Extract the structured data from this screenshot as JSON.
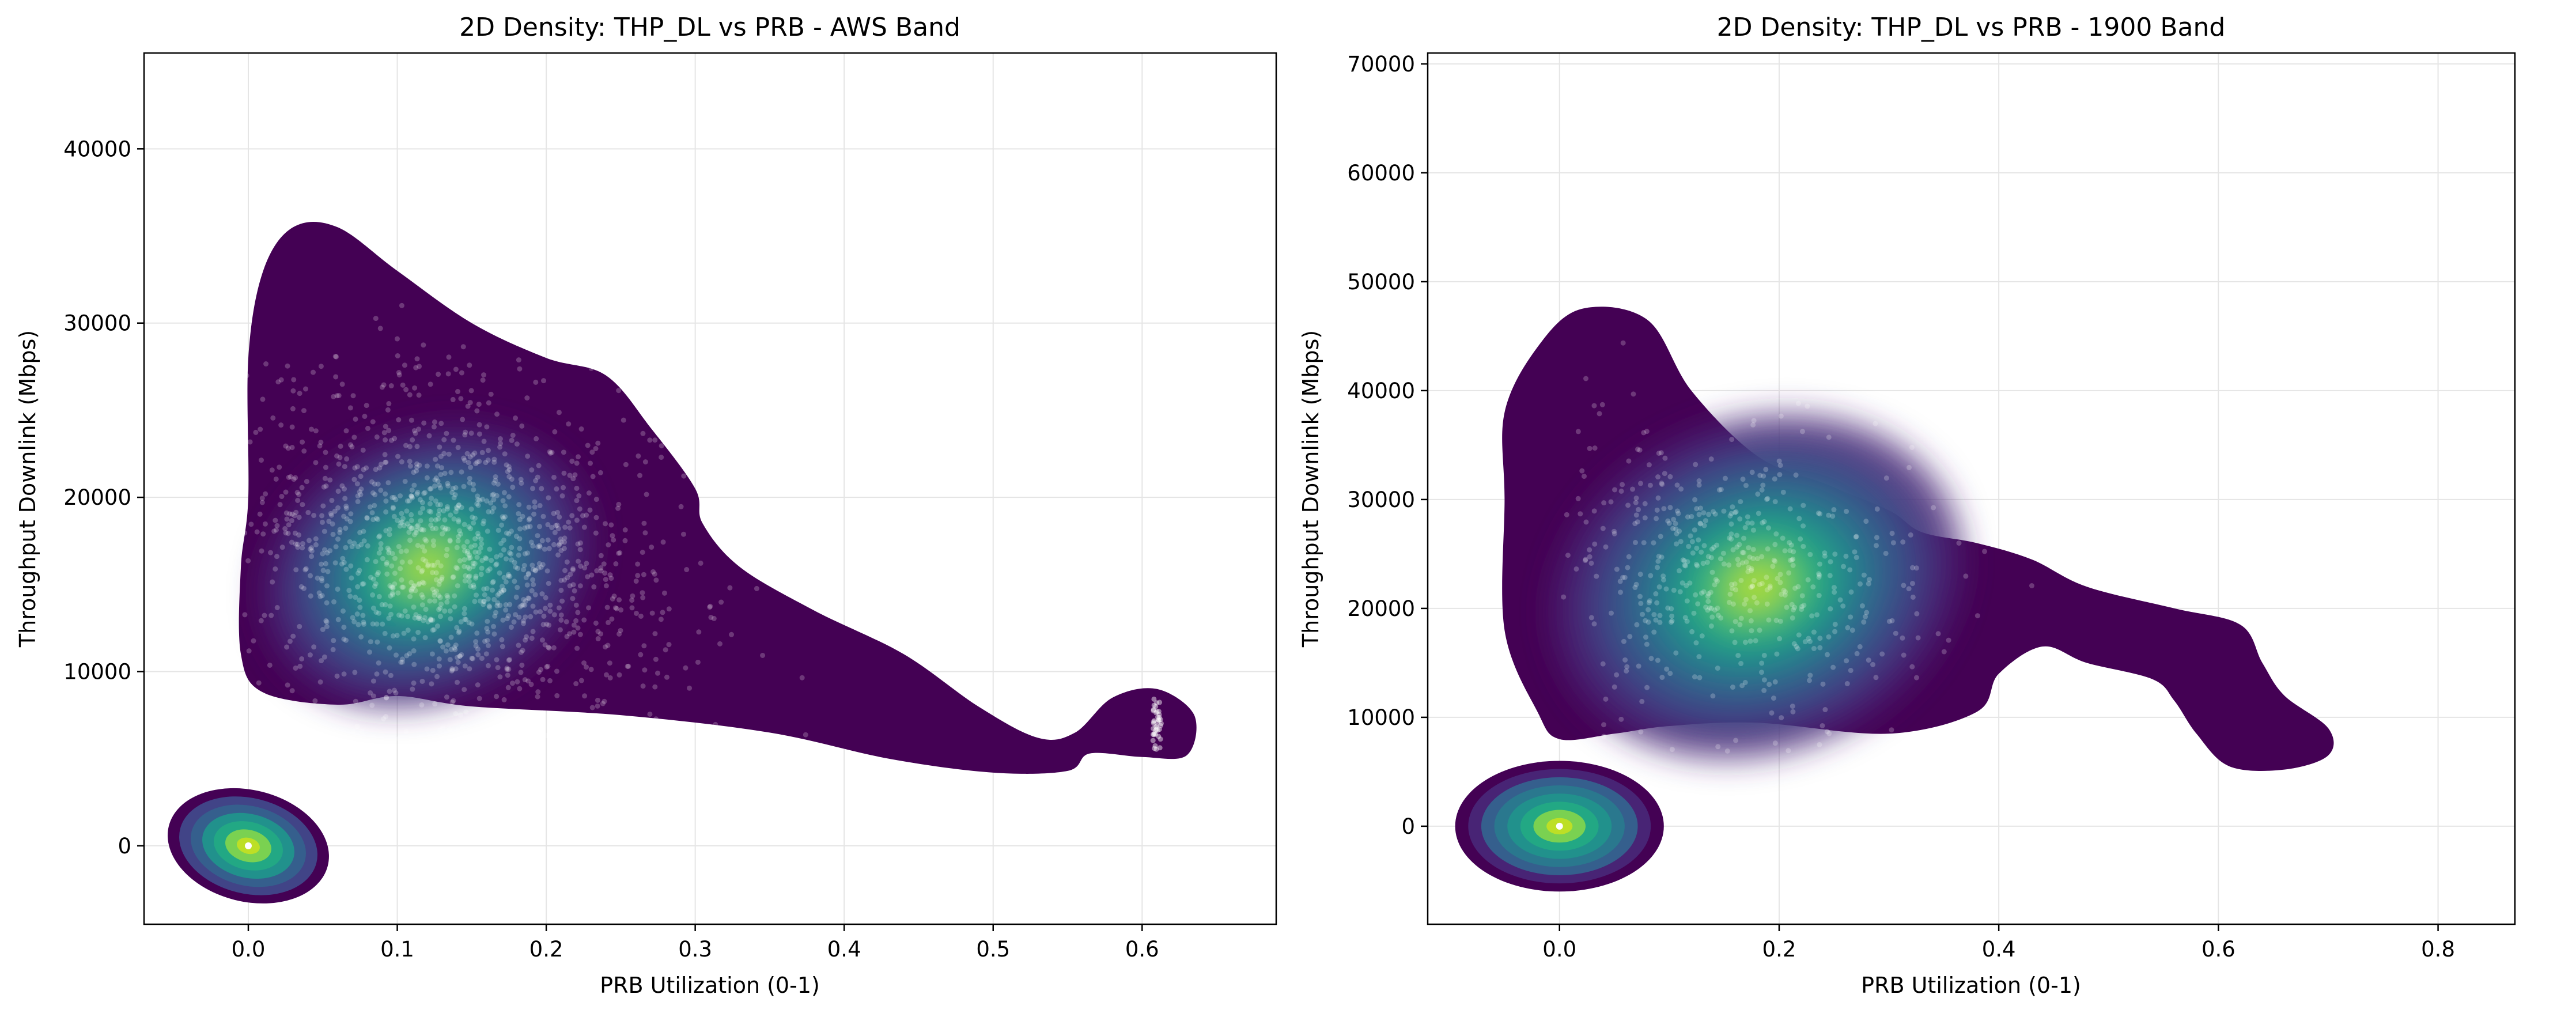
{
  "figure": {
    "colormap": [
      "#440154",
      "#482475",
      "#414487",
      "#355f8d",
      "#2a788e",
      "#21918c",
      "#22a884",
      "#44bf70",
      "#7ad151",
      "#bddf26",
      "#fde725"
    ],
    "scatter_color": "#ffffff",
    "grid_color": "#e5e5e5"
  },
  "chart_data": [
    {
      "type": "scatter",
      "subtype": "2d-density-kde-with-scatter",
      "title": "2D Density: THP_DL vs PRB - AWS Band",
      "xlabel": "PRB Utilization (0-1)",
      "ylabel": "Throughput Downlink (Mbps)",
      "xlim": [
        -0.07,
        0.69
      ],
      "ylim": [
        -4500,
        45500
      ],
      "xticks": [
        0.0,
        0.1,
        0.2,
        0.3,
        0.4,
        0.5,
        0.6
      ],
      "xtick_labels": [
        "0.0",
        "0.1",
        "0.2",
        "0.3",
        "0.4",
        "0.5",
        "0.6"
      ],
      "yticks": [
        0,
        10000,
        20000,
        30000,
        40000
      ],
      "ytick_labels": [
        "0",
        "10000",
        "20000",
        "30000",
        "40000"
      ],
      "grid": true,
      "density_outline": [
        [
          0.0,
          20000
        ],
        [
          0.0,
          28000
        ],
        [
          0.01,
          33000
        ],
        [
          0.03,
          35500
        ],
        [
          0.06,
          35500
        ],
        [
          0.1,
          33000
        ],
        [
          0.15,
          30000
        ],
        [
          0.2,
          28000
        ],
        [
          0.24,
          27000
        ],
        [
          0.27,
          24000
        ],
        [
          0.3,
          20500
        ],
        [
          0.305,
          18500
        ],
        [
          0.33,
          16000
        ],
        [
          0.38,
          13500
        ],
        [
          0.44,
          11000
        ],
        [
          0.49,
          8000
        ],
        [
          0.53,
          6200
        ],
        [
          0.555,
          6500
        ],
        [
          0.58,
          8500
        ],
        [
          0.61,
          9000
        ],
        [
          0.635,
          7500
        ],
        [
          0.63,
          5200
        ],
        [
          0.6,
          5100
        ],
        [
          0.565,
          5300
        ],
        [
          0.55,
          4300
        ],
        [
          0.5,
          4200
        ],
        [
          0.43,
          5000
        ],
        [
          0.35,
          6500
        ],
        [
          0.25,
          7500
        ],
        [
          0.15,
          8000
        ],
        [
          0.1,
          8600
        ],
        [
          0.06,
          8100
        ],
        [
          0.01,
          8800
        ],
        [
          -0.005,
          11000
        ],
        [
          -0.005,
          16000
        ]
      ],
      "core_density": {
        "center": [
          0.12,
          16000
        ],
        "spread": [
          0.06,
          4000
        ],
        "tilt_deg": -25
      },
      "secondary_density": {
        "center": [
          0.0,
          0
        ],
        "spread": [
          0.055,
          3200
        ],
        "levels": 7
      },
      "point_cloud": {
        "n_points": 1400,
        "center": [
          0.14,
          16500
        ],
        "spread": [
          0.1,
          6000
        ],
        "cluster_x": 0.61,
        "cluster_y_range": [
          5500,
          8500
        ]
      }
    },
    {
      "type": "scatter",
      "subtype": "2d-density-kde-with-scatter",
      "title": "2D Density: THP_DL vs PRB - 1900 Band",
      "xlabel": "PRB Utilization (0-1)",
      "ylabel": "Throughput Downlink (Mbps)",
      "xlim": [
        -0.12,
        0.87
      ],
      "ylim": [
        -9000,
        71000
      ],
      "xticks": [
        0.0,
        0.2,
        0.4,
        0.6,
        0.8
      ],
      "xtick_labels": [
        "0.0",
        "0.2",
        "0.4",
        "0.6",
        "0.8"
      ],
      "yticks": [
        0,
        10000,
        20000,
        30000,
        40000,
        50000,
        60000,
        70000
      ],
      "ytick_labels": [
        "0",
        "10000",
        "20000",
        "30000",
        "40000",
        "50000",
        "60000",
        "70000"
      ],
      "grid": true,
      "density_outline": [
        [
          -0.05,
          30000
        ],
        [
          -0.05,
          38000
        ],
        [
          -0.02,
          44000
        ],
        [
          0.02,
          47500
        ],
        [
          0.08,
          46500
        ],
        [
          0.12,
          40000
        ],
        [
          0.18,
          34000
        ],
        [
          0.24,
          31500
        ],
        [
          0.3,
          29000
        ],
        [
          0.33,
          27000
        ],
        [
          0.38,
          26000
        ],
        [
          0.43,
          24500
        ],
        [
          0.48,
          22000
        ],
        [
          0.56,
          20000
        ],
        [
          0.62,
          18500
        ],
        [
          0.64,
          15000
        ],
        [
          0.66,
          12000
        ],
        [
          0.7,
          9000
        ],
        [
          0.7,
          6500
        ],
        [
          0.66,
          5200
        ],
        [
          0.61,
          5500
        ],
        [
          0.58,
          8500
        ],
        [
          0.56,
          11500
        ],
        [
          0.54,
          13500
        ],
        [
          0.48,
          15000
        ],
        [
          0.44,
          16500
        ],
        [
          0.4,
          14000
        ],
        [
          0.38,
          10500
        ],
        [
          0.3,
          8500
        ],
        [
          0.18,
          9500
        ],
        [
          0.1,
          9200
        ],
        [
          0.05,
          8500
        ],
        [
          0.0,
          8000
        ],
        [
          -0.02,
          10500
        ],
        [
          -0.05,
          18000
        ]
      ],
      "core_density": {
        "center": [
          0.18,
          22000
        ],
        "spread": [
          0.1,
          8000
        ],
        "tilt_deg": -20
      },
      "secondary_density": {
        "center": [
          0.0,
          0
        ],
        "spread": [
          0.095,
          6000
        ],
        "levels": 8
      },
      "point_cloud": {
        "n_points": 550,
        "center": [
          0.15,
          24000
        ],
        "spread": [
          0.12,
          8000
        ]
      }
    }
  ]
}
